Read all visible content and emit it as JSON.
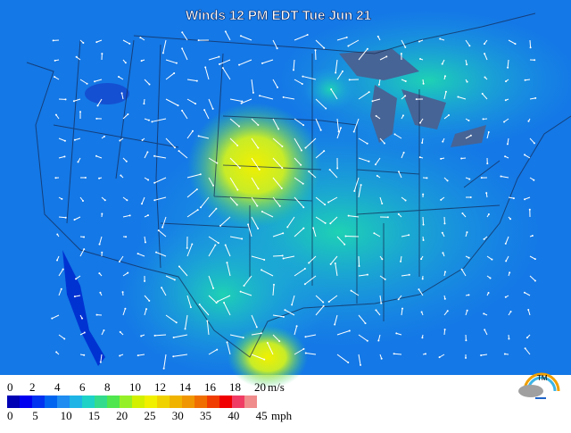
{
  "title": "Winds 12 PM EDT Tue Jun 21",
  "legend": {
    "metric": {
      "unit": "m/s",
      "ticks": [
        0,
        2,
        4,
        6,
        8,
        10,
        12,
        14,
        16,
        18,
        20
      ]
    },
    "imperial": {
      "unit": "mph",
      "ticks": [
        0,
        5,
        10,
        15,
        20,
        25,
        30,
        35,
        40,
        45
      ]
    }
  },
  "logo": {
    "mark": "TM"
  }
}
